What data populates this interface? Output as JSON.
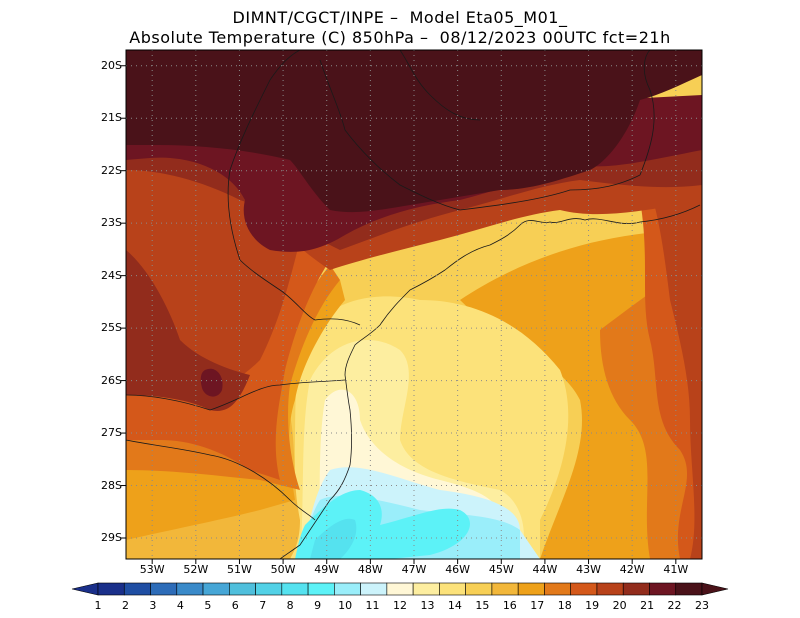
{
  "header": {
    "line1": "DIMNT/CGCT/INPE –  Model Eta05_M01_",
    "line2": "Absolute Temperature (C) 850hPa –  08/12/2023 00UTC fct=21h"
  },
  "map": {
    "lat_labels": [
      "20S",
      "21S",
      "22S",
      "23S",
      "24S",
      "25S",
      "26S",
      "27S",
      "28S",
      "29S"
    ],
    "lon_labels": [
      "53W",
      "52W",
      "51W",
      "50W",
      "49W",
      "48W",
      "47W",
      "46W",
      "45W",
      "44W",
      "43W",
      "42W",
      "41W"
    ],
    "lat_range": [
      -29.4,
      -19.7
    ],
    "lon_range": [
      -53.6,
      -40.4
    ],
    "grid": "dotted"
  },
  "colorbar": {
    "labels": [
      "1",
      "2",
      "3",
      "4",
      "5",
      "6",
      "7",
      "8",
      "9",
      "10",
      "11",
      "12",
      "13",
      "14",
      "15",
      "16",
      "17",
      "18",
      "19",
      "20",
      "21",
      "22",
      "23"
    ],
    "colors": [
      "#1a2f8a",
      "#1f4ea3",
      "#2d6cb8",
      "#3a8ac9",
      "#46a6d6",
      "#4fbfdc",
      "#52d1e6",
      "#55e2ef",
      "#5cf2f7",
      "#9aeefa",
      "#ccf3fb",
      "#fff7d6",
      "#fdeea0",
      "#fce27a",
      "#f7cf55",
      "#f2b73a",
      "#eea11a",
      "#e2791a",
      "#d4581a",
      "#b8421a",
      "#922c1c",
      "#6d1522",
      "#4a1219"
    ],
    "left_arrow_color": "#1a2f8a",
    "right_arrow_color": "#4a1219"
  }
}
